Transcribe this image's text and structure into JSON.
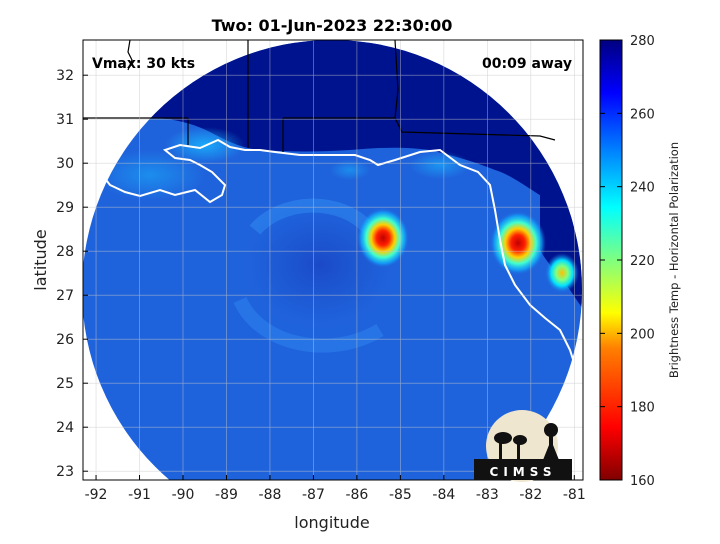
{
  "title": "Two: 01-Jun-2023 22:30:00",
  "vmax_label": "Vmax: 30 kts",
  "away_label": "00:09 away",
  "xlabel": "longitude",
  "ylabel": "latitude",
  "colorbar_label": "Brightness Temp - Horizontal Polarization",
  "logo_text": "CIMSS",
  "chart_data": {
    "type": "heatmap",
    "title": "Two: 01-Jun-2023 22:30:00",
    "xlabel": "longitude",
    "ylabel": "latitude",
    "xlim": [
      -92.3,
      -80.8
    ],
    "ylim": [
      22.8,
      32.8
    ],
    "x_ticks": [
      -92,
      -91,
      -90,
      -89,
      -88,
      -87,
      -86,
      -85,
      -84,
      -83,
      -82,
      -81
    ],
    "y_ticks": [
      23,
      24,
      25,
      26,
      27,
      28,
      29,
      30,
      31,
      32
    ],
    "grid": true,
    "colorbar": {
      "label": "Brightness Temp - Horizontal Polarization",
      "min": 160,
      "max": 280,
      "ticks": [
        160,
        180,
        200,
        220,
        240,
        260,
        280
      ]
    },
    "annotations": [
      "Vmax: 30 kts",
      "00:09 away"
    ],
    "storm_center": {
      "lon": -86.4,
      "lat": 27.4
    },
    "warm_spots": [
      {
        "lon": -85.2,
        "lat": 28.2,
        "value": 175
      },
      {
        "lon": -82.3,
        "lat": 28.1,
        "value": 172
      },
      {
        "lon": -81.9,
        "lat": 27.4,
        "value": 215
      }
    ]
  },
  "colors": {
    "scan_base": "#1f63dc",
    "outer_cold": "#00118a",
    "coast": "#ffffff",
    "land_border": "#000000"
  }
}
